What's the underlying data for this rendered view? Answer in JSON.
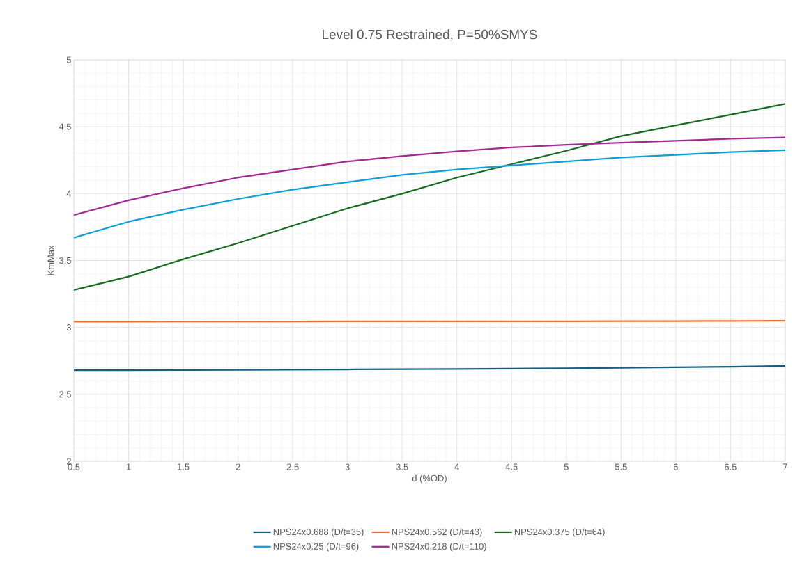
{
  "chart_data": {
    "type": "line",
    "title": "Level 0.75 Restrained, P=50%SMYS",
    "xlabel": "d (%OD)",
    "ylabel": "KmMax",
    "x": [
      0.5,
      1,
      1.5,
      2,
      2.5,
      3,
      3.5,
      4,
      4.5,
      5,
      5.5,
      6,
      6.5,
      7
    ],
    "series": [
      {
        "name": "NPS24x0.688 (D/t=35)",
        "color": "#156082",
        "values": [
          2.68,
          2.681,
          2.682,
          2.683,
          2.684,
          2.686,
          2.688,
          2.69,
          2.692,
          2.695,
          2.698,
          2.702,
          2.707,
          2.713
        ]
      },
      {
        "name": "NPS24x0.562 (D/t=43)",
        "color": "#e97132",
        "values": [
          3.043,
          3.043,
          3.044,
          3.044,
          3.044,
          3.045,
          3.045,
          3.045,
          3.046,
          3.046,
          3.047,
          3.047,
          3.048,
          3.049
        ]
      },
      {
        "name": "NPS24x0.375 (D/t=64)",
        "color": "#196b24",
        "values": [
          3.28,
          3.38,
          3.51,
          3.63,
          3.76,
          3.89,
          4.0,
          4.12,
          4.22,
          4.32,
          4.43,
          4.51,
          4.59,
          4.67
        ]
      },
      {
        "name": "NPS24x0.25 (D/t=96)",
        "color": "#0f9ed5",
        "values": [
          3.67,
          3.79,
          3.88,
          3.96,
          4.03,
          4.085,
          4.14,
          4.18,
          4.21,
          4.24,
          4.27,
          4.29,
          4.31,
          4.325
        ]
      },
      {
        "name": "NPS24x0.218 (D/t=110)",
        "color": "#a02b93",
        "values": [
          3.84,
          3.95,
          4.04,
          4.12,
          4.18,
          4.24,
          4.28,
          4.315,
          4.345,
          4.365,
          4.38,
          4.395,
          4.41,
          4.42
        ]
      }
    ],
    "xlim": [
      0.5,
      7
    ],
    "ylim": [
      2,
      5
    ],
    "xticks": [
      0.5,
      1,
      1.5,
      2,
      2.5,
      3,
      3.5,
      4,
      4.5,
      5,
      5.5,
      6,
      6.5,
      7
    ],
    "yticks": [
      2,
      2.5,
      3,
      3.5,
      4,
      4.5,
      5
    ],
    "grid": true,
    "legend": "bottom",
    "marker": "none",
    "line_style": "solid"
  }
}
